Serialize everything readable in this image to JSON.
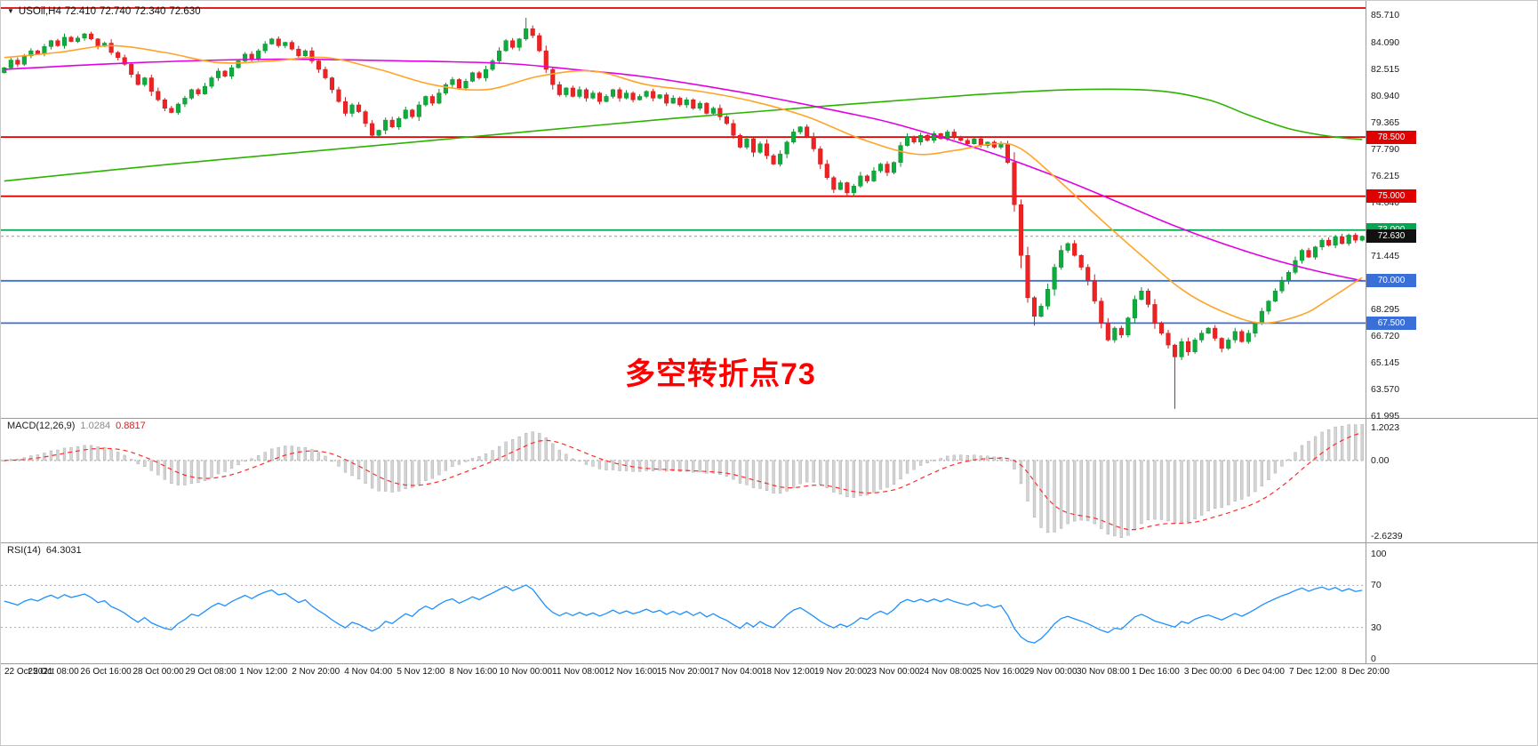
{
  "quote": {
    "symbol": "USOil,H4",
    "open": "72.410",
    "high": "72.740",
    "low": "72.340",
    "close": "72.630"
  },
  "annotation": {
    "text": "多空转折点73",
    "color": "#ff0000"
  },
  "macd": {
    "title": "MACD(12,26,9)",
    "value_main": "1.0284",
    "value_signal": "0.8817",
    "axis_max": "1.2023",
    "axis_zero": "0.00",
    "axis_min": "-2.6239",
    "params": [
      12,
      26,
      9
    ]
  },
  "rsi": {
    "title": "RSI(14)",
    "value": "64.3031",
    "period": 14,
    "axis": [
      {
        "v": 100,
        "t": "100"
      },
      {
        "v": 70,
        "t": "70"
      },
      {
        "v": 30,
        "t": "30"
      },
      {
        "v": 0,
        "t": "0"
      }
    ],
    "dotted_levels": [
      70,
      30
    ]
  },
  "chart_data": {
    "type": "candlestick",
    "title": "USOil H4 candlestick chart with MACD and RSI",
    "symbol": "USOil",
    "timeframe": "H4",
    "price_axis": {
      "min": 61.84,
      "max": 86.55,
      "ticks": [
        85.71,
        84.09,
        82.515,
        80.94,
        79.365,
        77.79,
        76.215,
        74.64,
        71.445,
        68.295,
        66.72,
        65.145,
        63.57,
        61.995
      ]
    },
    "first_open": 82.3,
    "closes": [
      82.6,
      83.05,
      82.8,
      83.3,
      83.6,
      83.4,
      83.85,
      84.2,
      83.9,
      84.4,
      84.15,
      84.35,
      84.6,
      84.3,
      83.85,
      84.05,
      83.5,
      83.2,
      82.8,
      82.2,
      81.6,
      82.0,
      81.2,
      80.7,
      80.2,
      79.95,
      80.45,
      80.8,
      81.3,
      81.05,
      81.5,
      82.0,
      82.4,
      82.1,
      82.6,
      83.0,
      83.4,
      83.1,
      83.6,
      84.0,
      84.3,
      83.9,
      84.1,
      83.7,
      83.3,
      83.6,
      83.0,
      82.5,
      82.0,
      81.3,
      80.6,
      79.9,
      80.4,
      80.0,
      79.3,
      78.6,
      78.9,
      79.5,
      79.1,
      79.6,
      80.1,
      79.7,
      80.4,
      80.9,
      80.5,
      81.1,
      81.6,
      81.9,
      81.4,
      81.8,
      82.3,
      82.0,
      82.5,
      83.0,
      83.6,
      84.2,
      83.8,
      84.3,
      84.9,
      84.5,
      83.6,
      82.5,
      81.6,
      81.0,
      81.4,
      80.9,
      81.3,
      80.8,
      81.1,
      80.6,
      80.9,
      81.3,
      80.8,
      81.1,
      80.7,
      80.9,
      81.2,
      80.8,
      81.0,
      80.5,
      80.8,
      80.4,
      80.7,
      80.2,
      80.5,
      79.9,
      80.2,
      79.7,
      79.3,
      78.6,
      77.9,
      78.4,
      77.6,
      78.1,
      77.4,
      76.9,
      77.5,
      78.2,
      78.8,
      79.1,
      78.5,
      77.8,
      76.9,
      76.1,
      75.4,
      75.8,
      75.2,
      75.6,
      76.2,
      75.9,
      76.5,
      76.9,
      76.4,
      77.0,
      78.0,
      78.5,
      78.2,
      78.6,
      78.3,
      78.7,
      78.4,
      78.8,
      78.5,
      78.3,
      78.1,
      78.4,
      78.0,
      78.2,
      77.9,
      78.1,
      77.0,
      74.5,
      71.5,
      69.0,
      67.9,
      68.5,
      69.5,
      70.8,
      71.8,
      72.2,
      71.5,
      70.8,
      70.0,
      68.8,
      67.5,
      66.5,
      67.2,
      66.8,
      67.8,
      68.9,
      69.4,
      68.6,
      67.5,
      66.9,
      66.2,
      65.5,
      66.4,
      65.8,
      66.5,
      66.9,
      67.2,
      66.6,
      66.0,
      66.5,
      67.0,
      66.4,
      66.9,
      67.5,
      68.2,
      68.8,
      69.4,
      70.0,
      70.5,
      71.2,
      71.8,
      71.4,
      72.0,
      72.4,
      72.1,
      72.6,
      72.2,
      72.7,
      72.4,
      72.63
    ],
    "wick_overrides": {
      "78": {
        "high": 85.55
      },
      "154": {
        "low": 67.35
      },
      "175": {
        "low": 62.43
      }
    },
    "hlines": [
      {
        "price": 86.13,
        "color": "#e00000",
        "label": null
      },
      {
        "price": 78.5,
        "color": "#e00000",
        "label": "78.500"
      },
      {
        "price": 75.0,
        "color": "#e00000",
        "label": "75.000"
      },
      {
        "price": 73.0,
        "color": "#00a650",
        "label": "73.000"
      },
      {
        "price": 70.0,
        "color": "#3a6fd8",
        "label": "70.000"
      },
      {
        "price": 67.5,
        "color": "#3a6fd8",
        "label": "67.500"
      }
    ],
    "current_price": {
      "value": 72.63,
      "label": "72.630",
      "badge_bg": "#111111"
    },
    "moving_averages": [
      {
        "name": "ma-slow-green",
        "color": "#2db200",
        "points": [
          [
            0,
            75.9
          ],
          [
            25,
            76.9
          ],
          [
            50,
            77.8
          ],
          [
            75,
            78.7
          ],
          [
            100,
            79.6
          ],
          [
            125,
            80.4
          ],
          [
            145,
            81.0
          ],
          [
            160,
            81.3
          ],
          [
            172,
            81.25
          ],
          [
            180,
            80.7
          ],
          [
            186,
            79.8
          ],
          [
            192,
            79.0
          ],
          [
            198,
            78.55
          ],
          [
            203,
            78.35
          ]
        ]
      },
      {
        "name": "ma-mid-magenta",
        "color": "#e100e1",
        "points": [
          [
            0,
            82.5
          ],
          [
            20,
            82.9
          ],
          [
            40,
            83.1
          ],
          [
            60,
            83.0
          ],
          [
            75,
            82.85
          ],
          [
            85,
            82.5
          ],
          [
            95,
            82.1
          ],
          [
            105,
            81.5
          ],
          [
            115,
            80.8
          ],
          [
            125,
            80.0
          ],
          [
            132,
            79.4
          ],
          [
            140,
            78.5
          ],
          [
            148,
            77.5
          ],
          [
            155,
            76.5
          ],
          [
            162,
            75.4
          ],
          [
            168,
            74.4
          ],
          [
            174,
            73.4
          ],
          [
            180,
            72.5
          ],
          [
            186,
            71.7
          ],
          [
            192,
            71.0
          ],
          [
            197,
            70.5
          ],
          [
            203,
            70.0
          ]
        ]
      },
      {
        "name": "ma-fast-orange",
        "color": "#ffa428",
        "points": [
          [
            0,
            83.2
          ],
          [
            8,
            83.5
          ],
          [
            16,
            83.9
          ],
          [
            24,
            83.5
          ],
          [
            32,
            82.9
          ],
          [
            40,
            83.0
          ],
          [
            48,
            83.2
          ],
          [
            56,
            82.5
          ],
          [
            64,
            81.6
          ],
          [
            72,
            81.3
          ],
          [
            80,
            82.1
          ],
          [
            88,
            82.4
          ],
          [
            96,
            81.6
          ],
          [
            104,
            81.2
          ],
          [
            112,
            80.6
          ],
          [
            120,
            79.7
          ],
          [
            128,
            78.4
          ],
          [
            136,
            77.5
          ],
          [
            142,
            77.7
          ],
          [
            148,
            78.1
          ],
          [
            152,
            77.8
          ],
          [
            158,
            75.8
          ],
          [
            164,
            73.6
          ],
          [
            170,
            71.5
          ],
          [
            176,
            69.5
          ],
          [
            182,
            68.2
          ],
          [
            188,
            67.5
          ],
          [
            194,
            68.0
          ],
          [
            198,
            68.9
          ],
          [
            203,
            70.2
          ]
        ]
      }
    ],
    "time_labels": [
      "22 Oct 2021",
      "25 Oct 08:00",
      "26 Oct 16:00",
      "28 Oct 00:00",
      "29 Oct 08:00",
      "1 Nov 12:00",
      "2 Nov 20:00",
      "4 Nov 04:00",
      "5 Nov 12:00",
      "8 Nov 16:00",
      "10 Nov 00:00",
      "11 Nov 08:00",
      "12 Nov 16:00",
      "15 Nov 20:00",
      "17 Nov 04:00",
      "18 Nov 12:00",
      "19 Nov 20:00",
      "23 Nov 00:00",
      "24 Nov 08:00",
      "25 Nov 16:00",
      "29 Nov 00:00",
      "30 Nov 08:00",
      "1 Dec 16:00",
      "3 Dec 00:00",
      "6 Dec 04:00",
      "7 Dec 12:00",
      "8 Dec 20:00"
    ],
    "colors": {
      "up": "#0fab3c",
      "up_stroke": "#0c8f32",
      "down": "#ee2222",
      "down_stroke": "#c81e1e",
      "macd_hist": "#d4d4d4",
      "macd_hist_stroke": "#b0b0b0",
      "macd_signal": "#ff2a2a",
      "rsi_line": "#1e90ff",
      "current_price_line": "#999999"
    }
  }
}
